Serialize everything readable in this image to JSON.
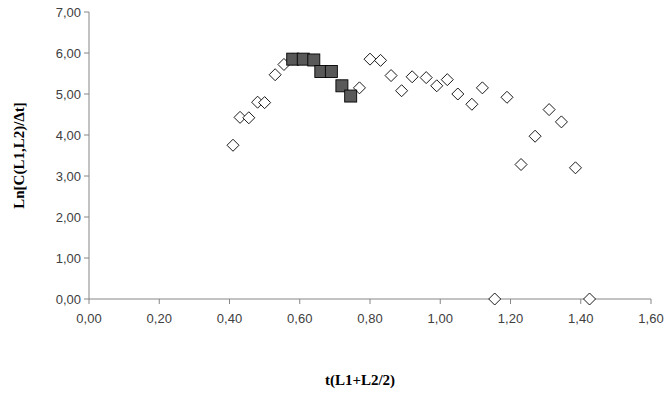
{
  "chart_data": {
    "type": "scatter",
    "x_label": "t(L1+L2/2)",
    "y_label": "Ln[C(L1,L2)/Δt]",
    "xlim": [
      0,
      1.6
    ],
    "ylim": [
      0,
      7
    ],
    "xticks": [
      {
        "value": 0,
        "label": "0,00"
      },
      {
        "value": 0.2,
        "label": "0,20"
      },
      {
        "value": 0.4,
        "label": "0,40"
      },
      {
        "value": 0.6,
        "label": "0,60"
      },
      {
        "value": 0.8,
        "label": "0,80"
      },
      {
        "value": 1,
        "label": "1,00"
      },
      {
        "value": 1.2,
        "label": "1,20"
      },
      {
        "value": 1.4,
        "label": "1,40"
      },
      {
        "value": 1.6,
        "label": "1,60"
      }
    ],
    "yticks": [
      {
        "value": 0,
        "label": "0,00"
      },
      {
        "value": 1,
        "label": "1,00"
      },
      {
        "value": 2,
        "label": "2,00"
      },
      {
        "value": 3,
        "label": "3,00"
      },
      {
        "value": 4,
        "label": "4,00"
      },
      {
        "value": 5,
        "label": "5,00"
      },
      {
        "value": 6,
        "label": "6,00"
      },
      {
        "value": 7,
        "label": "7,00"
      }
    ],
    "grid": false,
    "series": [
      {
        "color": "#ffffff",
        "marker": "diamond",
        "x": [
          0.41,
          0.43,
          0.455,
          0.48,
          0.5,
          0.53,
          0.555,
          0.58,
          0.77,
          0.8,
          0.83,
          0.86,
          0.89,
          0.92,
          0.96,
          0.99,
          1.02,
          1.05,
          1.09,
          1.12,
          1.155,
          1.19,
          1.23,
          1.27,
          1.31,
          1.345,
          1.385,
          1.425
        ],
        "values": [
          3.75,
          4.43,
          4.42,
          4.8,
          4.79,
          5.47,
          5.72,
          5.85,
          5.15,
          5.85,
          5.82,
          5.45,
          5.08,
          5.42,
          5.4,
          5.2,
          5.35,
          5.0,
          4.75,
          5.15,
          0.0,
          4.92,
          3.28,
          3.97,
          4.62,
          4.32,
          3.2,
          0.0
        ]
      },
      {
        "color": "#595959",
        "marker": "square",
        "x": [
          0.58,
          0.61,
          0.64,
          0.66,
          0.69,
          0.72,
          0.745
        ],
        "values": [
          5.85,
          5.85,
          5.83,
          5.55,
          5.55,
          5.2,
          4.95
        ]
      }
    ]
  }
}
